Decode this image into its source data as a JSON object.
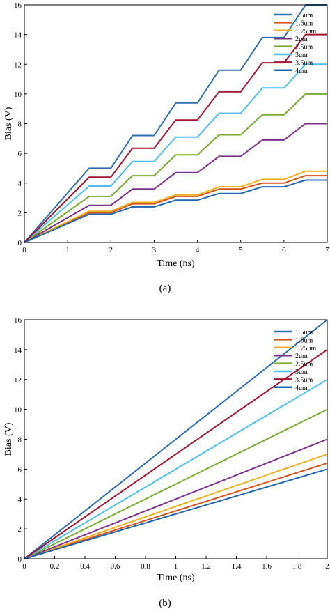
{
  "panels": [
    {
      "caption": "(a)",
      "chart_data": {
        "type": "line",
        "xlabel": "Time (ns)",
        "ylabel": "Bias (V)",
        "xlim": [
          0,
          7
        ],
        "ylim": [
          0,
          16
        ],
        "xticks": [
          0,
          1,
          2,
          3,
          4,
          5,
          6,
          7
        ],
        "yticks": [
          0,
          2,
          4,
          6,
          8,
          10,
          12,
          14,
          16
        ],
        "grid": false,
        "legend_position": "top-right",
        "series": [
          {
            "name": "1.5um",
            "color": "#2f6fb0",
            "x": [
              0,
              1.5,
              2,
              2.5,
              3,
              3.5,
              4,
              4.5,
              5,
              5.5,
              6,
              6.5,
              7
            ],
            "y": [
              0,
              5.0,
              5.0,
              7.2,
              7.2,
              9.4,
              9.4,
              11.6,
              11.6,
              13.8,
              13.8,
              16.0,
              16.0
            ]
          },
          {
            "name": "1.6um",
            "color": "#d95319",
            "x": [
              0,
              1.5,
              2,
              2.5,
              3,
              3.5,
              4,
              4.5,
              5,
              5.5,
              6,
              6.5,
              7
            ],
            "y": [
              0,
              2.0,
              2.0,
              2.6,
              2.6,
              3.1,
              3.1,
              3.6,
              3.6,
              4.0,
              4.0,
              4.5,
              4.5
            ]
          },
          {
            "name": "1.75um",
            "color": "#edb120",
            "x": [
              0,
              1.5,
              2,
              2.5,
              3,
              3.5,
              4,
              4.5,
              5,
              5.5,
              6,
              6.5,
              7
            ],
            "y": [
              0,
              2.1,
              2.1,
              2.7,
              2.7,
              3.2,
              3.2,
              3.75,
              3.75,
              4.25,
              4.25,
              4.8,
              4.8
            ]
          },
          {
            "name": "2um",
            "color": "#7e2f8e",
            "x": [
              0,
              1.5,
              2,
              2.5,
              3,
              3.5,
              4,
              4.5,
              5,
              5.5,
              6,
              6.5,
              7
            ],
            "y": [
              0,
              2.5,
              2.5,
              3.6,
              3.6,
              4.7,
              4.7,
              5.8,
              5.8,
              6.9,
              6.9,
              8.0,
              8.0
            ]
          },
          {
            "name": "2.5um",
            "color": "#77ac30",
            "x": [
              0,
              1.5,
              2,
              2.5,
              3,
              3.5,
              4,
              4.5,
              5,
              5.5,
              6,
              6.5,
              7
            ],
            "y": [
              0,
              3.1,
              3.1,
              4.5,
              4.5,
              5.9,
              5.9,
              7.25,
              7.25,
              8.6,
              8.6,
              10.0,
              10.0
            ]
          },
          {
            "name": "3um",
            "color": "#4dbeee",
            "x": [
              0,
              1.5,
              2,
              2.5,
              3,
              3.5,
              4,
              4.5,
              5,
              5.5,
              6,
              6.5,
              7
            ],
            "y": [
              0,
              3.8,
              3.8,
              5.45,
              5.45,
              7.1,
              7.1,
              8.7,
              8.7,
              10.4,
              10.4,
              12.0,
              12.0
            ]
          },
          {
            "name": "3.5um",
            "color": "#a2142f",
            "x": [
              0,
              1.5,
              2,
              2.5,
              3,
              3.5,
              4,
              4.5,
              5,
              5.5,
              6,
              6.5,
              7
            ],
            "y": [
              0,
              4.4,
              4.4,
              6.35,
              6.35,
              8.25,
              8.25,
              10.15,
              10.15,
              12.1,
              12.1,
              14.0,
              14.0
            ]
          },
          {
            "name": "4um",
            "color": "#2166ac",
            "x": [
              0,
              1.5,
              2,
              2.5,
              3,
              3.5,
              4,
              4.5,
              5,
              5.5,
              6,
              6.5,
              7
            ],
            "y": [
              0,
              1.9,
              1.9,
              2.4,
              2.4,
              2.85,
              2.85,
              3.3,
              3.3,
              3.75,
              3.75,
              4.2,
              4.2
            ]
          }
        ]
      }
    },
    {
      "caption": "(b)",
      "chart_data": {
        "type": "line",
        "xlabel": "Time (ns)",
        "ylabel": "Bias (V)",
        "xlim": [
          0,
          2
        ],
        "ylim": [
          0,
          16
        ],
        "xticks": [
          0,
          0.2,
          0.4,
          0.6,
          0.8,
          1,
          1.2,
          1.4,
          1.6,
          1.8,
          2
        ],
        "yticks": [
          0,
          2,
          4,
          6,
          8,
          10,
          12,
          14,
          16
        ],
        "grid": false,
        "legend_position": "top-right",
        "series": [
          {
            "name": "1.5um",
            "color": "#2f6fb0",
            "x": [
              0,
              2
            ],
            "y": [
              0,
              16
            ]
          },
          {
            "name": "1.6um",
            "color": "#d95319",
            "x": [
              0,
              2
            ],
            "y": [
              0,
              6.4
            ]
          },
          {
            "name": "1.75um",
            "color": "#edb120",
            "x": [
              0,
              2
            ],
            "y": [
              0,
              7
            ]
          },
          {
            "name": "2um",
            "color": "#7e2f8e",
            "x": [
              0,
              2
            ],
            "y": [
              0,
              8
            ]
          },
          {
            "name": "2.5um",
            "color": "#77ac30",
            "x": [
              0,
              2
            ],
            "y": [
              0,
              10
            ]
          },
          {
            "name": "3um",
            "color": "#4dbeee",
            "x": [
              0,
              2
            ],
            "y": [
              0,
              12
            ]
          },
          {
            "name": "3.5um",
            "color": "#a2142f",
            "x": [
              0,
              2
            ],
            "y": [
              0,
              14
            ]
          },
          {
            "name": "4um",
            "color": "#2166ac",
            "x": [
              0,
              2
            ],
            "y": [
              0,
              6
            ]
          }
        ]
      }
    }
  ]
}
